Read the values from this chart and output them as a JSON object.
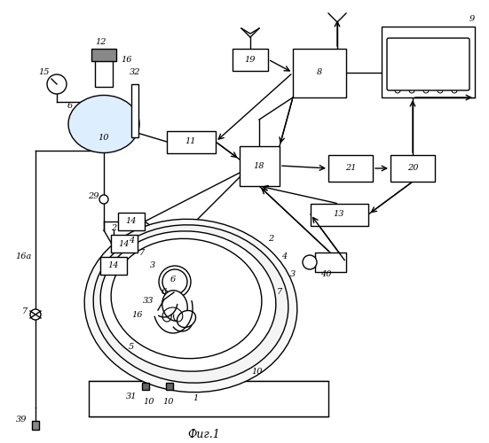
{
  "bg_color": "#ffffff",
  "lc": "#000000",
  "lw": 1.0,
  "fig_width": 5.51,
  "fig_height": 5.0,
  "dpi": 100,
  "title": "Фиг.1"
}
